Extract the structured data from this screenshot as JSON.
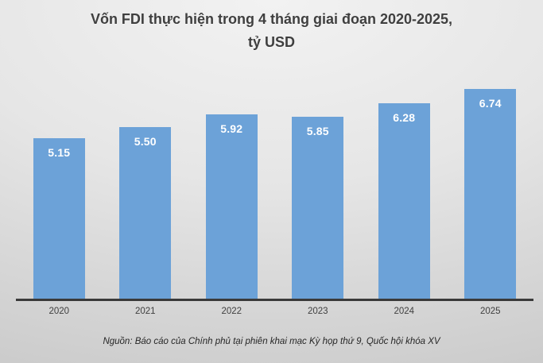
{
  "chart_data": {
    "type": "bar",
    "title": "Vốn FDI thực hiện trong 4 tháng giai đoạn 2020-2025, tỷ USD",
    "title_lines": [
      "Vốn FDI thực hiện trong 4 tháng giai đoạn 2020-2025,",
      "tỷ USD"
    ],
    "categories": [
      "2020",
      "2021",
      "2022",
      "2023",
      "2024",
      "2025"
    ],
    "values": [
      5.15,
      5.5,
      5.92,
      5.85,
      6.28,
      6.74
    ],
    "value_labels": [
      "5.15",
      "5.50",
      "5.92",
      "5.85",
      "6.28",
      "6.74"
    ],
    "unit": "tỷ USD",
    "xlabel": "",
    "ylabel": "",
    "ylim": [
      0,
      7.2
    ],
    "grid": false,
    "legend": false,
    "bar_color": "#6CA2D8",
    "value_label_color": "#FFFFFF",
    "axis_line_color": "#3A3A3A",
    "title_color": "#3F3F3F",
    "source": "Nguồn: Báo cáo của Chính phủ tại phiên khai mạc Kỳ họp thứ 9, Quốc hội khóa XV"
  }
}
